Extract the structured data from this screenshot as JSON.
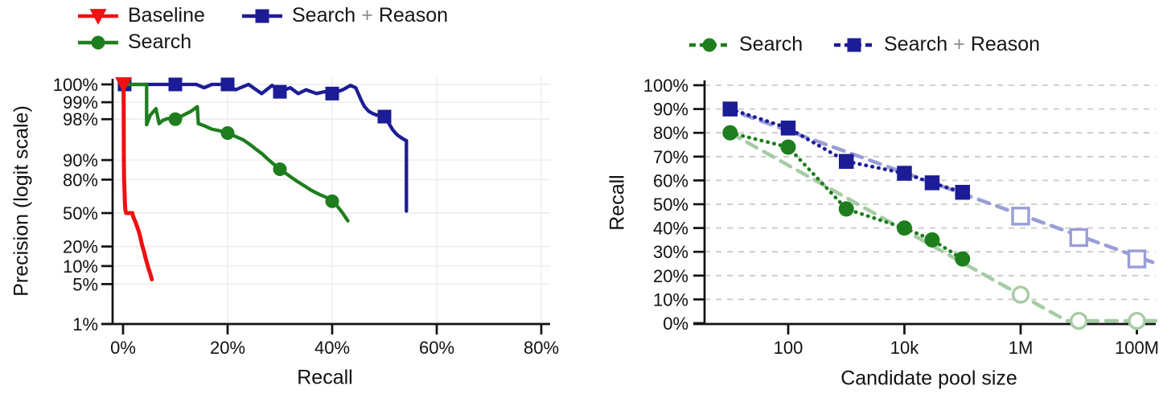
{
  "figure": {
    "background": "#ffffff",
    "axis_color": "#111111",
    "plus_sign_color": "#8a8a8a"
  },
  "chart_data": [
    {
      "id": "precision_recall_curve",
      "type": "line",
      "xlabel": "Recall",
      "ylabel": "Precision (logit scale)",
      "x_scale": "linear",
      "y_scale": "logit",
      "xlim": [
        0,
        80
      ],
      "grid": "solid-light",
      "legend_position": "above-top-left",
      "x_ticks": [
        {
          "v": 0,
          "label": "0%"
        },
        {
          "v": 20,
          "label": "20%"
        },
        {
          "v": 40,
          "label": "40%"
        },
        {
          "v": 60,
          "label": "60%"
        },
        {
          "v": 80,
          "label": "80%"
        }
      ],
      "y_ticks": [
        {
          "v": 100,
          "label": "100%"
        },
        {
          "v": 99,
          "label": "99%"
        },
        {
          "v": 98,
          "label": "98%"
        },
        {
          "v": 90,
          "label": "90%"
        },
        {
          "v": 80,
          "label": "80%"
        },
        {
          "v": 50,
          "label": "50%"
        },
        {
          "v": 20,
          "label": "20%"
        },
        {
          "v": 10,
          "label": "10%"
        },
        {
          "v": 5,
          "label": "5%"
        },
        {
          "v": 1,
          "label": "1%"
        }
      ],
      "series": [
        {
          "name": "Baseline",
          "color": "#ee1111",
          "marker": "triangle-down",
          "line": "solid",
          "points": [
            [
              0.1,
              99.9
            ],
            [
              0.15,
              90
            ],
            [
              0.2,
              80
            ],
            [
              0.3,
              70
            ],
            [
              0.35,
              60
            ],
            [
              0.45,
              53
            ],
            [
              0.6,
              50
            ],
            [
              1.8,
              50
            ],
            [
              1.9,
              47
            ],
            [
              2.2,
              43
            ],
            [
              2.45,
              40
            ],
            [
              2.7,
              36
            ],
            [
              3.0,
              32
            ],
            [
              3.3,
              27
            ],
            [
              3.5,
              23
            ],
            [
              3.7,
              20
            ],
            [
              4.0,
              17
            ],
            [
              4.3,
              13.5
            ],
            [
              4.6,
              11
            ],
            [
              4.9,
              9
            ],
            [
              5.2,
              7.5
            ],
            [
              5.5,
              6
            ]
          ],
          "marker_points": [
            [
              0.1,
              99.9
            ]
          ]
        },
        {
          "name": "Search",
          "color": "#1e7e1e",
          "marker": "circle",
          "line": "solid",
          "points": [
            [
              0.4,
              99.9
            ],
            [
              4.5,
              99.9
            ],
            [
              4.5,
              97.5
            ],
            [
              5.2,
              98.3
            ],
            [
              6.3,
              98.7
            ],
            [
              6.9,
              97.6
            ],
            [
              7.6,
              97.9
            ],
            [
              8.5,
              98.05
            ],
            [
              10,
              98.0
            ],
            [
              11.5,
              98.3
            ],
            [
              13,
              98.55
            ],
            [
              14.2,
              98.8
            ],
            [
              14.4,
              97.6
            ],
            [
              15.5,
              97.4
            ],
            [
              17,
              97.0
            ],
            [
              18.5,
              96.8
            ],
            [
              20,
              96.5
            ],
            [
              21.5,
              96.0
            ],
            [
              23,
              95.4
            ],
            [
              24.5,
              94.3
            ],
            [
              25.2,
              93.6
            ],
            [
              26.5,
              92.2
            ],
            [
              28,
              89.8
            ],
            [
              29,
              88.0
            ],
            [
              30,
              86.0
            ],
            [
              31.5,
              83.0
            ],
            [
              33,
              79.5
            ],
            [
              34.5,
              76.0
            ],
            [
              36,
              72.0
            ],
            [
              37.5,
              68.5
            ],
            [
              39,
              65.5
            ],
            [
              40,
              62.0
            ],
            [
              41,
              57.0
            ],
            [
              42,
              50.0
            ],
            [
              43,
              42.0
            ]
          ],
          "marker_points": [
            [
              10,
              98.0
            ],
            [
              20,
              96.5
            ],
            [
              30,
              86.0
            ],
            [
              40,
              62.0
            ]
          ]
        },
        {
          "name": "Search + Reason",
          "color": "#1c1c96",
          "marker": "square",
          "line": "solid",
          "points": [
            [
              0.4,
              99.9
            ],
            [
              8,
              99.9
            ],
            [
              10,
              99.6
            ],
            [
              12,
              99.65
            ],
            [
              14,
              99.55
            ],
            [
              15.5,
              99.45
            ],
            [
              17,
              99.6
            ],
            [
              20,
              99.55
            ],
            [
              21.5,
              99.4
            ],
            [
              24,
              99.55
            ],
            [
              26.5,
              99.3
            ],
            [
              28.5,
              99.5
            ],
            [
              30,
              99.35
            ],
            [
              32,
              99.45
            ],
            [
              33.5,
              99.3
            ],
            [
              35,
              99.4
            ],
            [
              37,
              99.3
            ],
            [
              38.5,
              99.35
            ],
            [
              40,
              99.3
            ],
            [
              42,
              99.4
            ],
            [
              43.5,
              99.5
            ],
            [
              44.5,
              99.45
            ],
            [
              45.5,
              99.1
            ],
            [
              46.2,
              98.8
            ],
            [
              47,
              98.55
            ],
            [
              47.8,
              98.4
            ],
            [
              48.6,
              98.3
            ],
            [
              50,
              98.2
            ],
            [
              50.5,
              97.9
            ],
            [
              51,
              97.5
            ],
            [
              51.5,
              97.0
            ],
            [
              52,
              96.6
            ],
            [
              52.5,
              96.2
            ],
            [
              53.2,
              95.8
            ],
            [
              53.8,
              95.45
            ],
            [
              54.2,
              95.3
            ],
            [
              54.2,
              52
            ]
          ],
          "marker_points": [
            [
              0.3,
              99.9
            ],
            [
              10,
              99.6
            ],
            [
              20,
              99.55
            ],
            [
              30,
              99.35
            ],
            [
              40,
              99.3
            ],
            [
              50,
              98.2
            ]
          ]
        }
      ]
    },
    {
      "id": "recall_vs_candidate_pool_size",
      "type": "line",
      "xlabel": "Candidate pool size",
      "ylabel": "Recall",
      "x_scale": "log",
      "y_scale": "linear",
      "ylim": [
        0,
        100
      ],
      "grid": "dashed-light",
      "legend_position": "above-top",
      "x_ticks": [
        {
          "v": 100,
          "label": "100"
        },
        {
          "v": 10000,
          "label": "10k"
        },
        {
          "v": 1000000,
          "label": "1M"
        },
        {
          "v": 100000000,
          "label": "100M"
        }
      ],
      "y_ticks": [
        {
          "v": 100,
          "label": "100%"
        },
        {
          "v": 90,
          "label": "90%"
        },
        {
          "v": 80,
          "label": "80%"
        },
        {
          "v": 70,
          "label": "70%"
        },
        {
          "v": 60,
          "label": "60%"
        },
        {
          "v": 50,
          "label": "50%"
        },
        {
          "v": 40,
          "label": "40%"
        },
        {
          "v": 30,
          "label": "30%"
        },
        {
          "v": 20,
          "label": "20%"
        },
        {
          "v": 10,
          "label": "10%"
        },
        {
          "v": 0,
          "label": "0%"
        }
      ],
      "series": [
        {
          "name": "Search",
          "color": "#1e7e1e",
          "light_color": "#a6cca6",
          "marker": "circle",
          "measured": {
            "x": [
              10,
              100,
              1000,
              10000,
              30000,
              100000
            ],
            "recall_pct": [
              80,
              74,
              48,
              40,
              35,
              27
            ]
          },
          "extrapolated": {
            "x": [
              1000000,
              10000000,
              100000000
            ],
            "recall_pct": [
              12,
              1,
              1
            ]
          },
          "trend_line": [
            [
              10,
              80
            ],
            [
              6200000,
              1
            ],
            [
              220000000,
              1
            ]
          ]
        },
        {
          "name": "Search + Reason",
          "color": "#1c1c96",
          "light_color": "#9a9ed6",
          "marker": "square",
          "measured": {
            "x": [
              10,
              100,
              1000,
              10000,
              30000,
              100000
            ],
            "recall_pct": [
              90,
              82,
              68,
              63,
              59,
              55
            ]
          },
          "extrapolated": {
            "x": [
              1000000,
              10000000,
              100000000
            ],
            "recall_pct": [
              45,
              36,
              27
            ]
          },
          "trend_line": [
            [
              8,
              90.5
            ],
            [
              250000000,
              24.5
            ]
          ]
        }
      ]
    }
  ]
}
